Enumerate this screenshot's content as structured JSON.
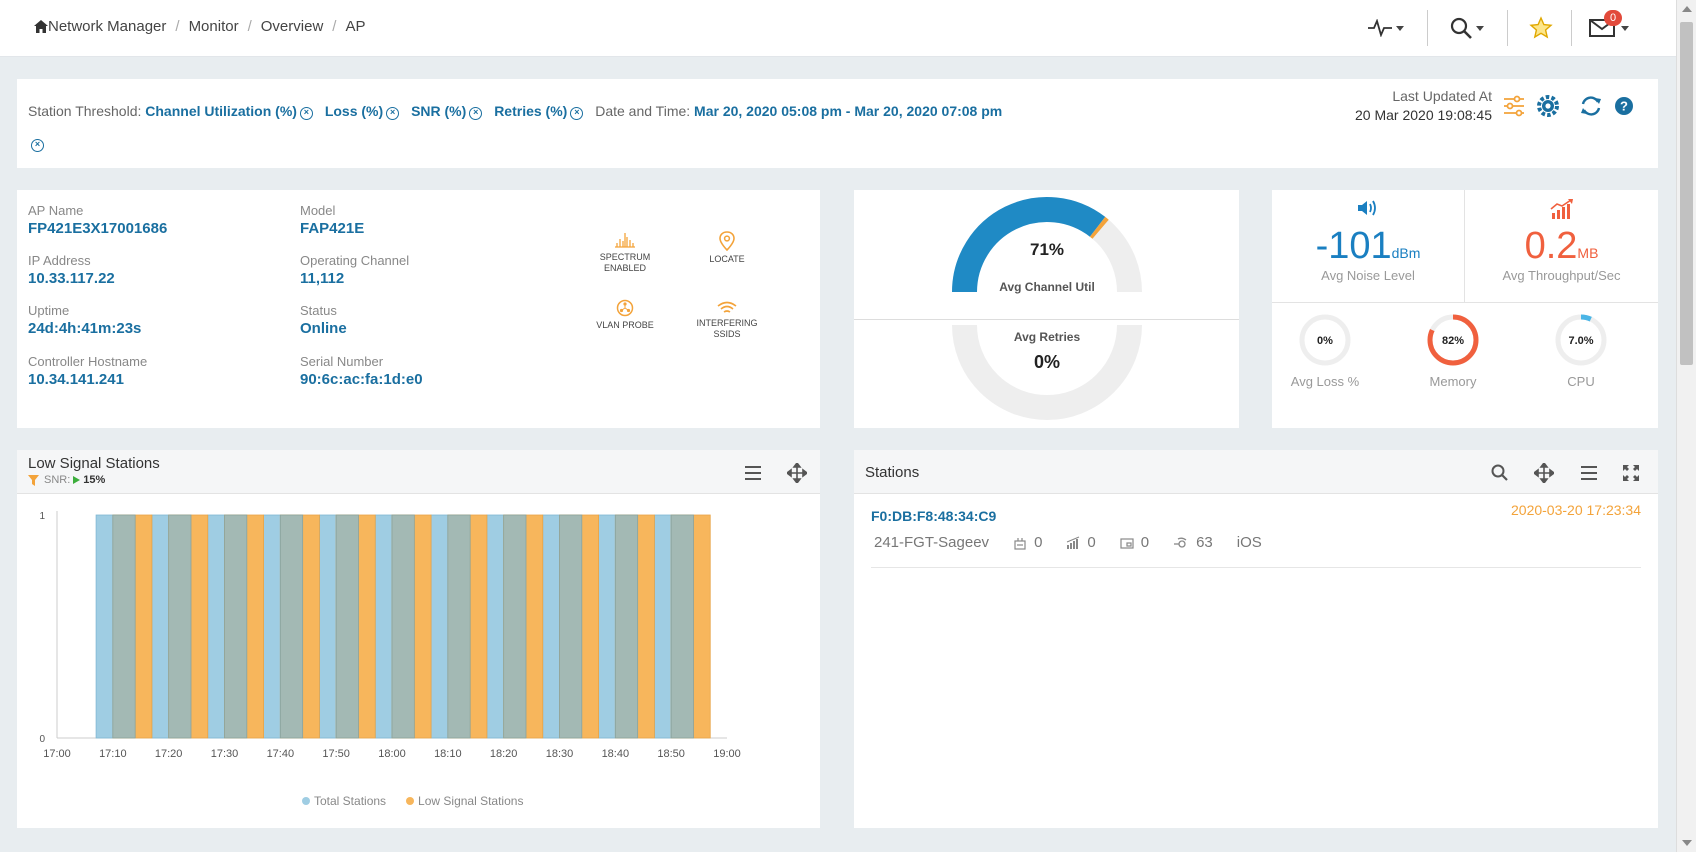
{
  "breadcrumb": {
    "items": [
      "Network Manager",
      "Monitor",
      "Overview",
      "AP"
    ]
  },
  "topbar": {
    "mail_badge": "0"
  },
  "threshold": {
    "label": "Station Threshold:",
    "filters": [
      "Channel Utilization (%)",
      "Loss (%)",
      "SNR (%)",
      "Retries (%)"
    ],
    "date_label": "Date and Time:",
    "date_value": "Mar 20, 2020 05:08 pm - Mar 20, 2020 07:08 pm",
    "last_updated_label": "Last Updated At",
    "last_updated_value": "20 Mar 2020 19:08:45"
  },
  "ap_info": {
    "ap_name_label": "AP Name",
    "ap_name": "FP421E3X17001686",
    "model_label": "Model",
    "model": "FAP421E",
    "ip_label": "IP Address",
    "ip": "10.33.117.22",
    "channel_label": "Operating Channel",
    "channel": "11,112",
    "uptime_label": "Uptime",
    "uptime": "24d:4h:41m:23s",
    "status_label": "Status",
    "status": "Online",
    "controller_label": "Controller Hostname",
    "controller": "10.34.141.241",
    "serial_label": "Serial Number",
    "serial": "90:6c:ac:fa:1d:e0",
    "features": {
      "spectrum_line1": "SPECTRUM",
      "spectrum_line2": "ENABLED",
      "locate": "LOCATE",
      "vlan_probe": "VLAN PROBE",
      "interfering": "INTERFERING SSIDS"
    }
  },
  "gauges": {
    "channel_util": {
      "value": "71%",
      "label": "Avg Channel Util",
      "fraction": 0.71
    },
    "retries": {
      "value": "0%",
      "label": "Avg Retries",
      "fraction": 0.0
    }
  },
  "stats": {
    "noise": {
      "value": "-101",
      "unit": "dBm",
      "label": "Avg Noise Level"
    },
    "throughput": {
      "value": "0.2",
      "unit": "MB",
      "label": "Avg Throughput/Sec"
    },
    "loss": {
      "value": "0%",
      "label": "Avg Loss %",
      "fraction": 0.0
    },
    "memory": {
      "value": "82%",
      "label": "Memory",
      "fraction": 0.82
    },
    "cpu": {
      "value": "7.0%",
      "label": "CPU",
      "fraction": 0.07
    }
  },
  "low_signal": {
    "title": "Low Signal Stations",
    "filter_label": "SNR:",
    "filter_value": "15%"
  },
  "colors": {
    "accent": "#1a6fa0",
    "total": "#9fcde3",
    "low": "#f7b65c",
    "noise": "#1a7fc1",
    "throughput": "#f0603e"
  },
  "chart_data": {
    "type": "bar",
    "x_ticks": [
      "17:00",
      "17:10",
      "17:20",
      "17:30",
      "17:40",
      "17:50",
      "18:00",
      "18:10",
      "18:20",
      "18:30",
      "18:40",
      "18:50",
      "19:00"
    ],
    "y_ticks": [
      "0",
      "1"
    ],
    "ylim": [
      0,
      1
    ],
    "xlim": [
      "17:00",
      "19:00"
    ],
    "series": [
      {
        "name": "Total Stations",
        "x_start": [
          "17:07",
          "17:17",
          "17:27",
          "17:37",
          "17:47",
          "17:57",
          "18:07",
          "18:17",
          "18:27",
          "18:37",
          "18:47"
        ],
        "x_end": [
          "17:14",
          "17:24",
          "17:34",
          "17:44",
          "17:54",
          "18:04",
          "18:14",
          "18:24",
          "18:34",
          "18:44",
          "18:54"
        ],
        "value": 1
      },
      {
        "name": "Low Signal Stations",
        "x_start": [
          "17:10",
          "17:20",
          "17:30",
          "17:40",
          "17:50",
          "18:00",
          "18:10",
          "18:20",
          "18:30",
          "18:40",
          "18:50"
        ],
        "x_end": [
          "17:17",
          "17:27",
          "17:37",
          "17:47",
          "17:57",
          "18:07",
          "18:17",
          "18:27",
          "18:37",
          "18:47",
          "18:57"
        ],
        "value": 1
      }
    ],
    "legend_position": "bottom",
    "grid": false
  },
  "stations": {
    "title": "Stations",
    "items": [
      {
        "mac": "F0:DB:F8:48:34:C9",
        "time": "2020-03-20 17:23:34",
        "name": "241-FGT-Sageev",
        "v1": "0",
        "v2": "0",
        "v3": "0",
        "v4": "63",
        "os": "iOS"
      }
    ]
  }
}
